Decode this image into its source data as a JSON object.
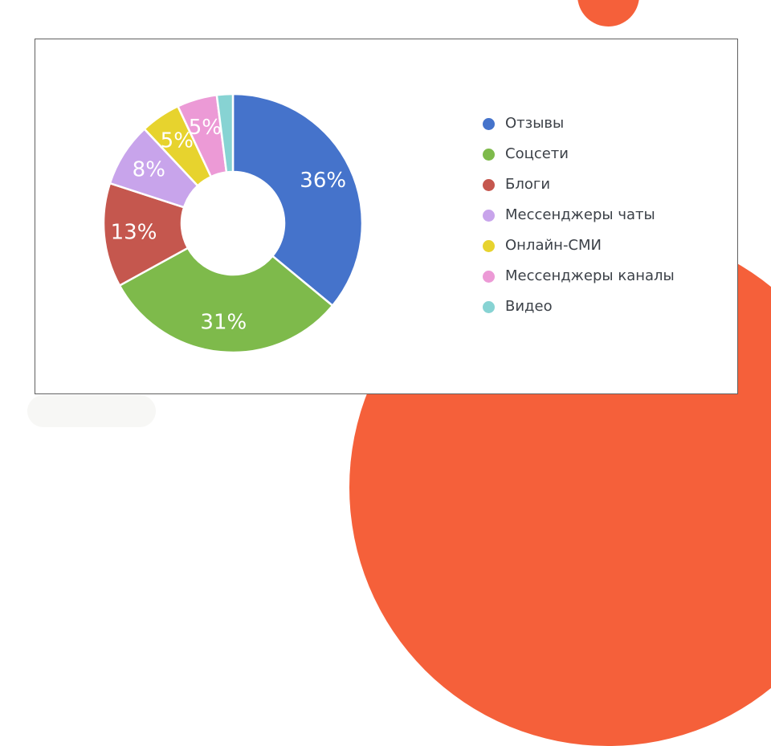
{
  "colors": {
    "accent_orange": "#F5603A",
    "card_border": "#606060",
    "card_background": "#FFFFFF",
    "page_background": "#FFFFFF",
    "legend_text": "#3C4148",
    "slice_label_text": "#FFFFFF"
  },
  "chart_data": {
    "type": "pie",
    "subtype": "donut",
    "title": "",
    "legend_position": "right",
    "direction": "clockwise",
    "start_angle_deg": 0,
    "categories": [
      "Отзывы",
      "Соцсети",
      "Блоги",
      "Мессенджеры чаты",
      "Онлайн-СМИ",
      "Мессенджеры каналы",
      "Видео"
    ],
    "values": [
      36,
      31,
      13,
      8,
      5,
      5,
      2
    ],
    "slice_colors": [
      "#4573CB",
      "#7EBA4B",
      "#C5574E",
      "#C8A4EB",
      "#E7D32E",
      "#EC9AD6",
      "#87D3D3"
    ],
    "data_labels": [
      "36%",
      "31%",
      "13%",
      "8%",
      "5%",
      "5%",
      ""
    ],
    "legend": [
      "Отзывы",
      "Соцсети",
      "Блоги",
      "Мессенджеры чаты",
      "Онлайн-СМИ",
      "Мессенджеры каналы",
      "Видео"
    ]
  }
}
